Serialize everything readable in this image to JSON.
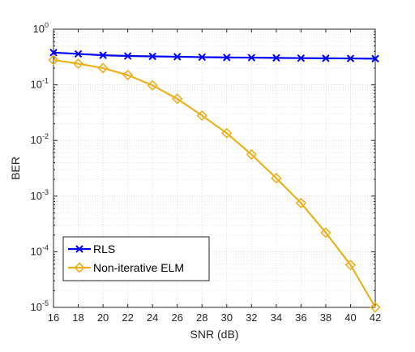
{
  "chart_data": {
    "type": "line",
    "xlabel": "SNR (dB)",
    "ylabel": "BER",
    "xlim": [
      16,
      42
    ],
    "ylim": [
      1e-05,
      1
    ],
    "yscale": "log",
    "grid": true,
    "legend_position": "bottom-left",
    "x": [
      16,
      18,
      20,
      22,
      24,
      26,
      28,
      30,
      32,
      34,
      36,
      38,
      40,
      42
    ],
    "x_tick_labels": [
      "16",
      "18",
      "20",
      "22",
      "24",
      "26",
      "28",
      "30",
      "32",
      "34",
      "36",
      "38",
      "40",
      "42"
    ],
    "y_ticks": [
      {
        "value": 1,
        "base": "10",
        "exp": "0"
      },
      {
        "value": 0.1,
        "base": "10",
        "exp": "-1"
      },
      {
        "value": 0.01,
        "base": "10",
        "exp": "-2"
      },
      {
        "value": 0.001,
        "base": "10",
        "exp": "-3"
      },
      {
        "value": 0.0001,
        "base": "10",
        "exp": "-4"
      },
      {
        "value": 1e-05,
        "base": "10",
        "exp": "-5"
      }
    ],
    "series": [
      {
        "name": "RLS",
        "color": "#0000ff",
        "marker": "x",
        "values": [
          0.38,
          0.36,
          0.34,
          0.33,
          0.325,
          0.32,
          0.315,
          0.31,
          0.308,
          0.305,
          0.302,
          0.3,
          0.298,
          0.295
        ]
      },
      {
        "name": "Non-iterative ELM",
        "color": "#edb120",
        "marker": "diamond",
        "values": [
          0.28,
          0.24,
          0.2,
          0.15,
          0.098,
          0.056,
          0.028,
          0.0135,
          0.0056,
          0.0021,
          0.00075,
          0.00022,
          5.8e-05,
          1e-05
        ]
      }
    ]
  }
}
